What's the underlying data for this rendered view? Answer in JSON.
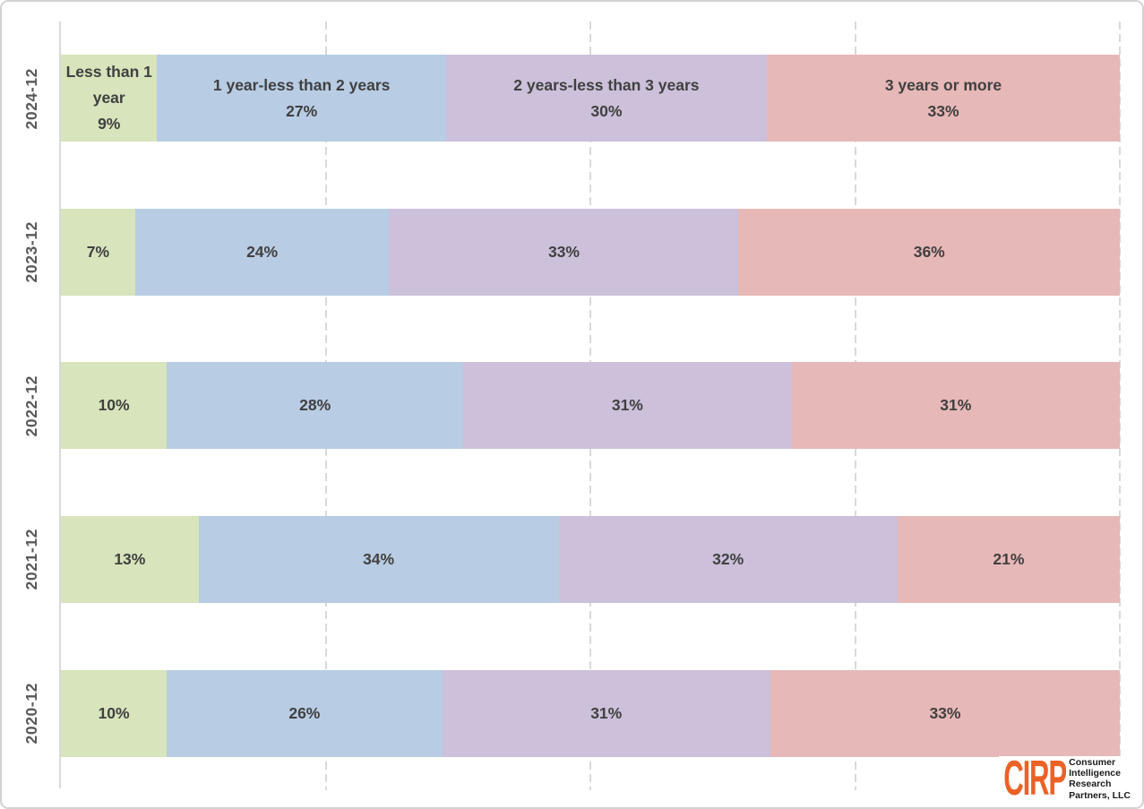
{
  "chart_data": {
    "type": "bar",
    "orientation": "horizontal_stacked",
    "unit": "%",
    "title": "",
    "categories": [
      "2024-12",
      "2023-12",
      "2022-12",
      "2021-12",
      "2020-12"
    ],
    "series": [
      {
        "name": "Less than 1 year",
        "color": "#D7E4BC",
        "values": [
          9,
          7,
          10,
          13,
          10
        ]
      },
      {
        "name": "1 year-less than 2 years",
        "color": "#B8CCE4",
        "values": [
          27,
          24,
          28,
          34,
          26
        ]
      },
      {
        "name": "2 years-less than 3 years",
        "color": "#CCC0DA",
        "values": [
          30,
          33,
          31,
          32,
          31
        ]
      },
      {
        "name": "3 years or more",
        "color": "#E6B8B7",
        "values": [
          33,
          36,
          31,
          21,
          33
        ]
      }
    ],
    "value_labels": "each segment shows its percent; series names are shown only inside the top (2024-12) row",
    "xlim": [
      0,
      100
    ],
    "gridlines": {
      "positions_pct": [
        25,
        50,
        75,
        100
      ],
      "style": "dashed",
      "color": "#D9D9D9"
    },
    "axis_line_color": "#D9D9D9",
    "label_color": "#404040",
    "category_label_color": "#595959",
    "legend": "none"
  },
  "logo": {
    "brand": "CIRP",
    "brand_color": "#EB6226",
    "lines": [
      "Consumer",
      "Intelligence",
      "Research",
      "Partners, LLC"
    ]
  }
}
